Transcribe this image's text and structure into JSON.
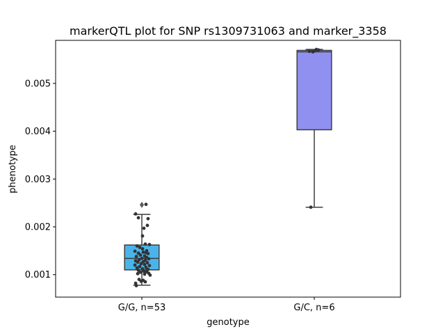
{
  "chart_data": {
    "type": "box",
    "title": "markerQTL plot for SNP rs1309731063 and marker_3358",
    "xlabel": "genotype",
    "ylabel": "phenotype",
    "ylim": [
      0.00053,
      0.0059
    ],
    "y_ticks": [
      0.001,
      0.002,
      0.003,
      0.004,
      0.005
    ],
    "y_tick_labels": [
      "0.001",
      "0.002",
      "0.003",
      "0.004",
      "0.005"
    ],
    "grid": false,
    "groups": [
      {
        "label": "G/G, n=53",
        "color": "#4ab4ea",
        "whisker_low": 0.00078,
        "q1": 0.0011,
        "median": 0.00134,
        "q3": 0.00162,
        "whisker_high": 0.00226,
        "outliers": [
          0.00246
        ],
        "points": [
          [
            -0.09,
            0.00227
          ],
          [
            0.06,
            0.00247
          ],
          [
            -0.05,
            0.00219
          ],
          [
            0.09,
            0.00217
          ],
          [
            0.08,
            0.00203
          ],
          [
            0.03,
            0.00197
          ],
          [
            0.01,
            0.00181
          ],
          [
            -0.07,
            0.0016
          ],
          [
            0.05,
            0.00164
          ],
          [
            0.11,
            0.00163
          ],
          [
            -0.03,
            0.00157
          ],
          [
            0.01,
            0.00154
          ],
          [
            0.07,
            0.0015
          ],
          [
            -0.1,
            0.00149
          ],
          [
            0.02,
            0.00147
          ],
          [
            0.06,
            0.00146
          ],
          [
            -0.05,
            0.00145
          ],
          [
            0.09,
            0.00144
          ],
          [
            -0.02,
            0.00141
          ],
          [
            0.04,
            0.00139
          ],
          [
            -0.08,
            0.00138
          ],
          [
            0.07,
            0.00136
          ],
          [
            0.0,
            0.00134
          ],
          [
            0.1,
            0.00133
          ],
          [
            -0.04,
            0.00131
          ],
          [
            0.05,
            0.0013
          ],
          [
            -0.09,
            0.00129
          ],
          [
            0.02,
            0.00127
          ],
          [
            -0.06,
            0.00126
          ],
          [
            0.08,
            0.00125
          ],
          [
            -0.01,
            0.00123
          ],
          [
            0.04,
            0.00121
          ],
          [
            -0.1,
            0.0012
          ],
          [
            0.11,
            0.00119
          ],
          [
            -0.03,
            0.00117
          ],
          [
            0.06,
            0.00115
          ],
          [
            -0.07,
            0.00114
          ],
          [
            0.01,
            0.00112
          ],
          [
            0.09,
            0.00111
          ],
          [
            -0.05,
            0.00109
          ],
          [
            0.03,
            0.00107
          ],
          [
            0.07,
            0.00106
          ],
          [
            -0.02,
            0.00105
          ],
          [
            0.1,
            0.00103
          ],
          [
            0.12,
            0.00099
          ],
          [
            -0.06,
            0.00102
          ],
          [
            0.04,
            0.00101
          ],
          [
            -0.04,
            0.0009
          ],
          [
            0.02,
            0.00088
          ],
          [
            -0.01,
            0.00086
          ],
          [
            0.05,
            0.00085
          ],
          [
            -0.09,
            0.00082
          ],
          [
            -0.08,
            0.00077
          ]
        ]
      },
      {
        "label": "G/C, n=6",
        "color": "#9090f0",
        "whisker_low": 0.00241,
        "q1": 0.00403,
        "median": 0.00566,
        "q3": 0.00569,
        "whisker_high": 0.00571,
        "outliers": [],
        "points": [
          [
            -0.05,
            0.00241
          ],
          [
            0.03,
            0.00571
          ],
          [
            -0.07,
            0.00567
          ],
          [
            0.01,
            0.00568
          ],
          [
            0.06,
            0.0057
          ],
          [
            -0.02,
            0.00566
          ]
        ]
      }
    ]
  }
}
